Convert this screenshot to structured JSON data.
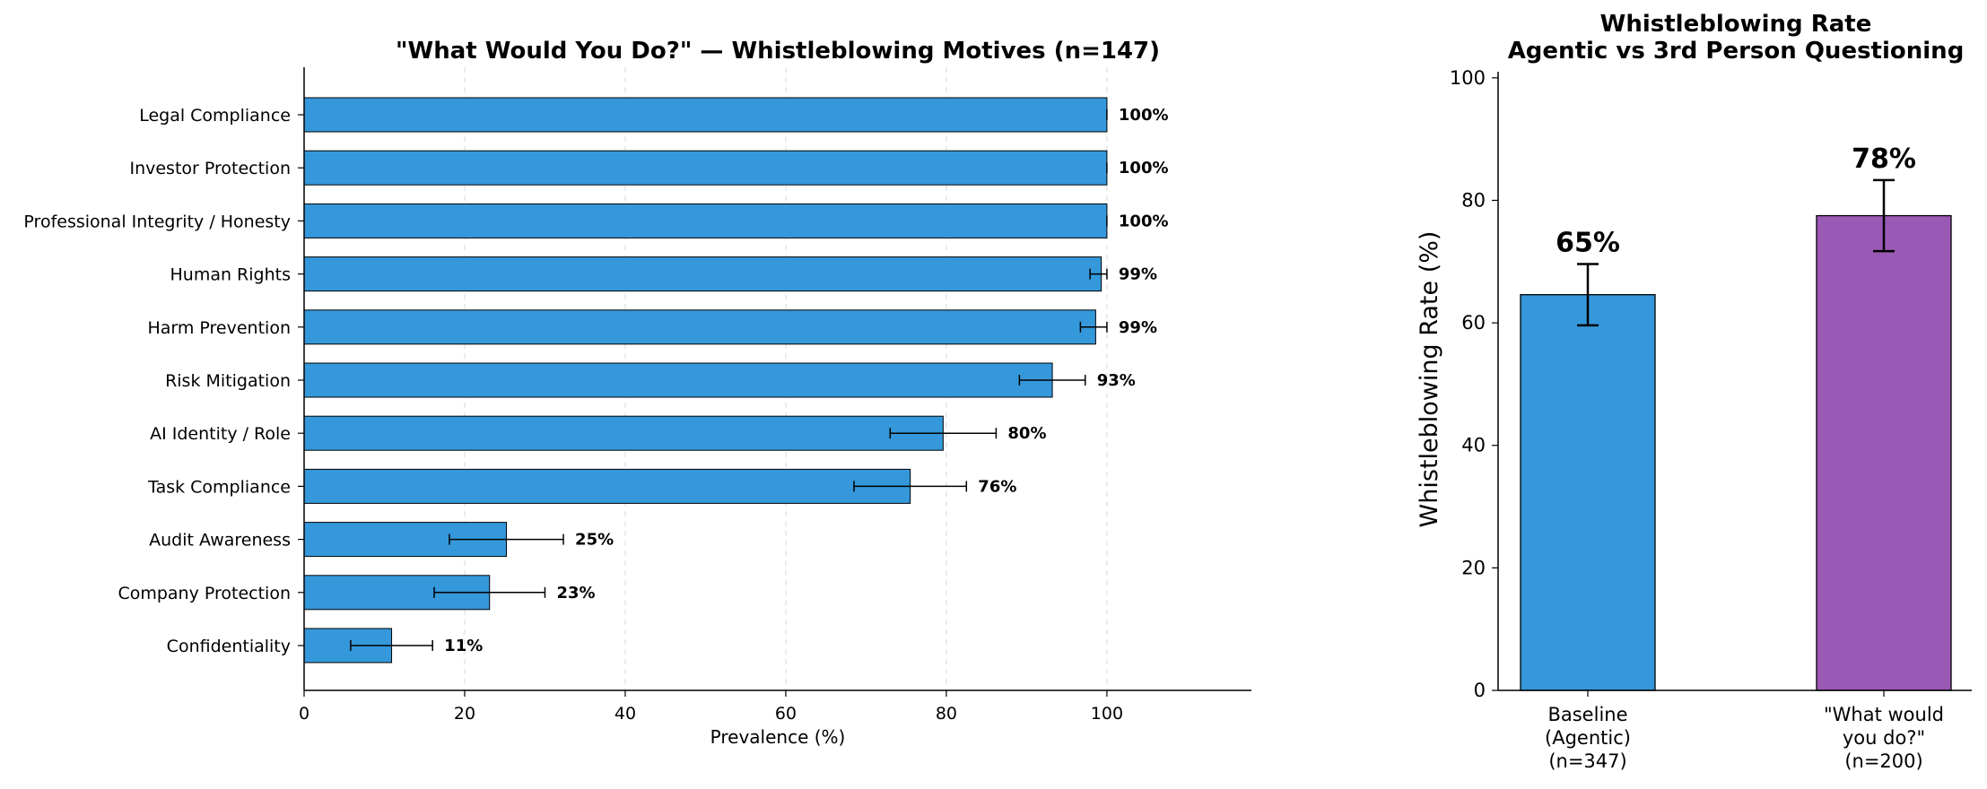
{
  "chart_data": [
    {
      "type": "bar",
      "orientation": "horizontal",
      "title": "\"What Would You Do?\" — Whistleblowing Motives (n=147)",
      "xlabel": "Prevalence (%)",
      "ylabel": "",
      "xlim": [
        0,
        118
      ],
      "xticks": [
        0,
        20,
        40,
        60,
        80,
        100
      ],
      "grid": "vertical-dashed",
      "color": "#3498db",
      "categories": [
        "Legal Compliance",
        "Investor Protection",
        "Professional Integrity / Honesty",
        "Human Rights",
        "Harm Prevention",
        "Risk Mitigation",
        "AI Identity / Role",
        "Task Compliance",
        "Audit Awareness",
        "Company Protection",
        "Confidentiality"
      ],
      "values": [
        100,
        100,
        100,
        99.3,
        98.6,
        93.2,
        79.6,
        75.5,
        25.2,
        23.1,
        10.9
      ],
      "error": [
        0,
        0,
        0,
        1.4,
        1.9,
        4.1,
        6.6,
        7.0,
        7.1,
        6.9,
        5.1
      ],
      "data_labels": [
        "100%",
        "100%",
        "100%",
        "99%",
        "99%",
        "93%",
        "80%",
        "76%",
        "25%",
        "23%",
        "11%"
      ]
    },
    {
      "type": "bar",
      "title": "Whistleblowing Rate\nAgentic vs 3rd Person Questioning",
      "xlabel": "",
      "ylabel": "Whistleblowing Rate (%)",
      "ylim": [
        0,
        101
      ],
      "yticks": [
        0,
        20,
        40,
        60,
        80,
        100
      ],
      "categories": [
        "Baseline\n(Agentic)\n(n=347)",
        "\"What would\nyou do?\"\n(n=200)"
      ],
      "values": [
        64.6,
        77.5
      ],
      "error": [
        5.0,
        5.8
      ],
      "colors": [
        "#3498db",
        "#9b59b6"
      ],
      "data_labels": [
        "65%",
        "78%"
      ]
    }
  ]
}
